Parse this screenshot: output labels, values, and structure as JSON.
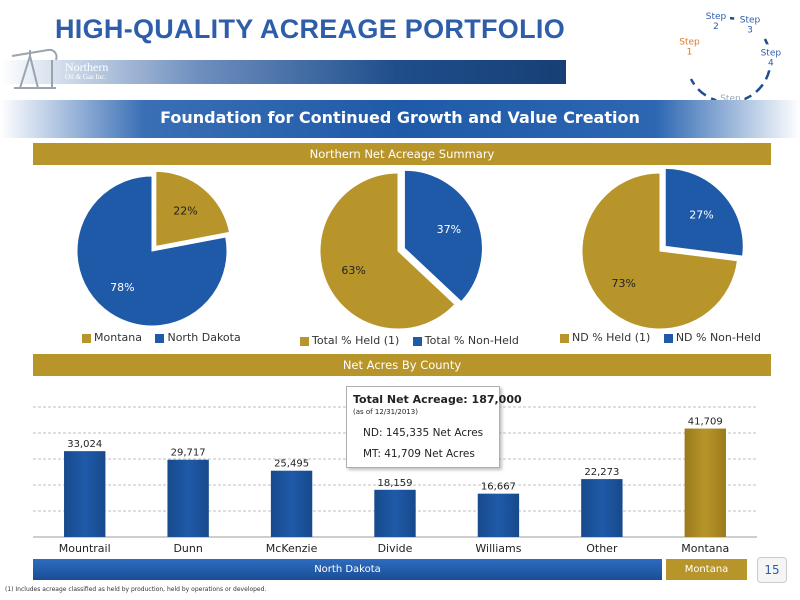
{
  "header": {
    "title": "HIGH-QUALITY ACREAGE PORTFOLIO",
    "subtitle": "Foundation for Continued Growth and Value Creation",
    "logo_line1": "Northern",
    "logo_line2": "Oil & Gas Inc."
  },
  "steps": [
    "Step 1",
    "Step 2",
    "Step 3",
    "Step 4",
    "Step 5"
  ],
  "colors": {
    "gold": "#b8952a",
    "blue": "#1f5aa8",
    "title_blue": "#2e5daa"
  },
  "summary_title": "Northern Net Acreage Summary",
  "county_title": "Net Acres By County",
  "chart_data": [
    {
      "type": "pie",
      "labels": [
        "Montana",
        "North Dakota"
      ],
      "values": [
        22,
        78
      ],
      "value_labels": [
        "22%",
        "78%"
      ],
      "colors": [
        "#b8952a",
        "#1f5aa8"
      ],
      "exploded": "Montana",
      "legend": "bottom"
    },
    {
      "type": "pie",
      "labels": [
        "Total % Held (1)",
        "Total % Non-Held"
      ],
      "values": [
        63,
        37
      ],
      "value_labels": [
        "63%",
        "37%"
      ],
      "colors": [
        "#b8952a",
        "#1f5aa8"
      ],
      "exploded": "Total % Non-Held",
      "legend": "bottom"
    },
    {
      "type": "pie",
      "labels": [
        "ND % Held (1)",
        "ND % Non-Held"
      ],
      "values": [
        73,
        27
      ],
      "value_labels": [
        "73%",
        "27%"
      ],
      "colors": [
        "#b8952a",
        "#1f5aa8"
      ],
      "exploded": "ND % Non-Held",
      "legend": "bottom"
    },
    {
      "type": "bar",
      "categories": [
        "Mountrail",
        "Dunn",
        "McKenzie",
        "Divide",
        "Williams",
        "Other",
        "Montana"
      ],
      "values": [
        33024,
        29717,
        25495,
        18159,
        16667,
        22273,
        41709
      ],
      "value_labels": [
        "33,024",
        "29,717",
        "25,495",
        "18,159",
        "16,667",
        "22,273",
        "41,709"
      ],
      "bar_colors": [
        "#1f5aa8",
        "#1f5aa8",
        "#1f5aa8",
        "#1f5aa8",
        "#1f5aa8",
        "#1f5aa8",
        "#b8952a"
      ],
      "ylim": [
        0,
        50000
      ],
      "gridlines": [
        10000,
        20000,
        30000,
        40000,
        50000
      ],
      "grid": true
    }
  ],
  "callout": {
    "total": "Total Net Acreage: 187,000",
    "asof": "(as of 12/31/2013)",
    "nd": "ND: 145,335 Net Acres",
    "mt": "MT: 41,709 Net Acres"
  },
  "groups": {
    "nd": "North Dakota",
    "mt": "Montana"
  },
  "page_number": "15",
  "footnote": "(1)    Includes acreage classified as held by production, held by operations or developed."
}
